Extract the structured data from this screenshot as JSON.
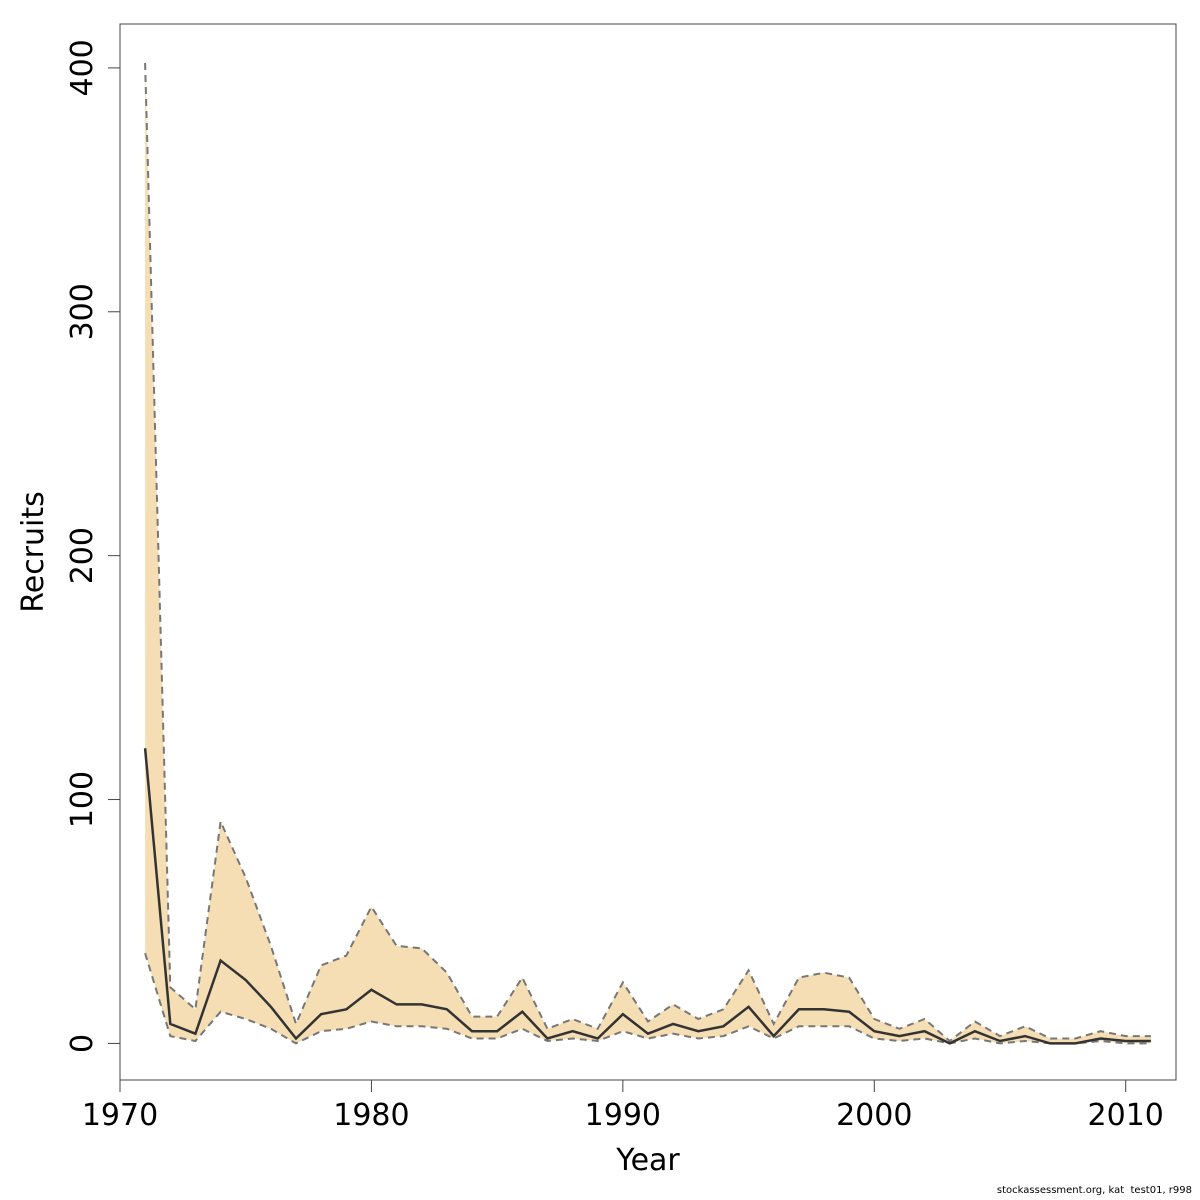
{
  "chart_data": {
    "type": "area",
    "title": "",
    "xlabel": "Year",
    "ylabel": "Recruits",
    "xlim": [
      1970,
      2012
    ],
    "ylim": [
      -15,
      418
    ],
    "xticks": [
      1970,
      1980,
      1990,
      2000,
      2010
    ],
    "yticks": [
      0,
      100,
      200,
      300,
      400
    ],
    "grid": false,
    "colors": {
      "band": "#F5DEB3",
      "line": "#333333",
      "bounds": "#777777"
    },
    "x": [
      1971,
      1972,
      1973,
      1974,
      1975,
      1976,
      1977,
      1978,
      1979,
      1980,
      1981,
      1982,
      1983,
      1984,
      1985,
      1986,
      1987,
      1988,
      1989,
      1990,
      1991,
      1992,
      1993,
      1994,
      1995,
      1996,
      1997,
      1998,
      1999,
      2000,
      2001,
      2002,
      2003,
      2004,
      2005,
      2006,
      2007,
      2008,
      2009,
      2010,
      2011
    ],
    "series": [
      {
        "values": [
          121,
          8,
          4,
          34,
          26,
          15,
          2,
          12,
          14,
          22,
          16,
          16,
          14,
          5,
          5,
          13,
          2,
          5,
          2,
          12,
          4,
          8,
          5,
          7,
          15,
          3,
          14,
          14,
          13,
          5,
          3,
          5,
          0,
          5,
          1,
          3,
          0,
          0,
          2,
          1,
          1
        ]
      },
      {
        "values": [
          37,
          3,
          1,
          13,
          10,
          6,
          0,
          5,
          6,
          9,
          7,
          7,
          6,
          2,
          2,
          6,
          1,
          2,
          1,
          5,
          2,
          4,
          2,
          3,
          7,
          2,
          7,
          7,
          7,
          2,
          1,
          2,
          0,
          2,
          0,
          1,
          0,
          0,
          1,
          0,
          0
        ]
      },
      {
        "values": [
          402,
          23,
          14,
          91,
          68,
          40,
          8,
          32,
          36,
          56,
          40,
          39,
          29,
          11,
          11,
          27,
          6,
          10,
          6,
          25,
          9,
          16,
          10,
          14,
          30,
          8,
          27,
          29,
          27,
          10,
          6,
          10,
          1,
          9,
          3,
          7,
          2,
          2,
          5,
          3,
          3
        ]
      }
    ]
  },
  "footer": {
    "text": "stockassessment.org, kat  test01, r998"
  }
}
